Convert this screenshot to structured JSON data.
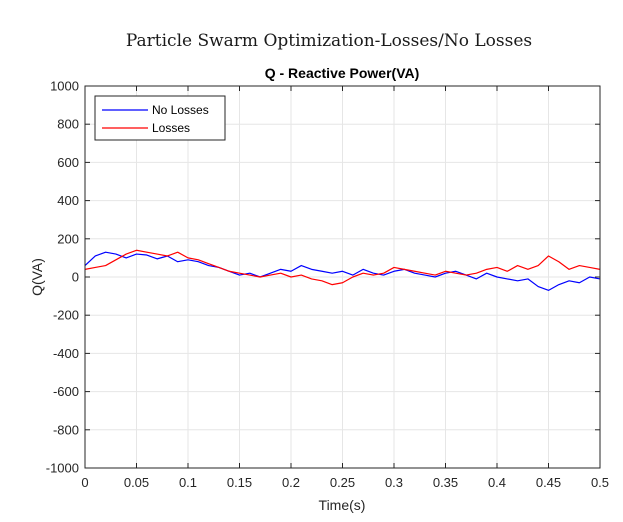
{
  "figure_title": "Particle Swarm Optimization-Losses/No Losses",
  "chart_data": {
    "type": "line",
    "title": "Q - Reactive Power(VA)",
    "xlabel": "Time(s)",
    "ylabel": "Q(VA)",
    "xlim": [
      0,
      0.5
    ],
    "ylim": [
      -1000,
      1000
    ],
    "xticks": [
      "0",
      "0.05",
      "0.1",
      "0.15",
      "0.2",
      "0.25",
      "0.3",
      "0.35",
      "0.4",
      "0.45",
      "0.5"
    ],
    "yticks": [
      "1000",
      "800",
      "600",
      "400",
      "200",
      "0",
      "-200",
      "-400",
      "-600",
      "-800",
      "-1000"
    ],
    "grid": true,
    "legend_position": "top-left",
    "x": [
      0,
      0.01,
      0.02,
      0.03,
      0.04,
      0.05,
      0.06,
      0.07,
      0.08,
      0.09,
      0.1,
      0.11,
      0.12,
      0.13,
      0.14,
      0.15,
      0.16,
      0.17,
      0.18,
      0.19,
      0.2,
      0.21,
      0.22,
      0.23,
      0.24,
      0.25,
      0.26,
      0.27,
      0.28,
      0.29,
      0.3,
      0.31,
      0.32,
      0.33,
      0.34,
      0.35,
      0.36,
      0.37,
      0.38,
      0.39,
      0.4,
      0.41,
      0.42,
      0.43,
      0.44,
      0.45,
      0.46,
      0.47,
      0.48,
      0.49,
      0.5
    ],
    "series": [
      {
        "name": "No Losses",
        "color": "#0000ff",
        "values": [
          60,
          110,
          130,
          120,
          100,
          120,
          115,
          95,
          110,
          80,
          90,
          80,
          60,
          50,
          30,
          10,
          20,
          0,
          20,
          40,
          30,
          60,
          40,
          30,
          20,
          30,
          10,
          40,
          20,
          10,
          30,
          40,
          20,
          10,
          0,
          20,
          30,
          10,
          -10,
          20,
          0,
          -10,
          -20,
          -10,
          -50,
          -70,
          -40,
          -20,
          -30,
          0,
          -10
        ]
      },
      {
        "name": "Losses",
        "color": "#ff0000",
        "values": [
          40,
          50,
          60,
          90,
          120,
          140,
          130,
          120,
          110,
          130,
          100,
          90,
          70,
          50,
          30,
          20,
          10,
          0,
          10,
          20,
          0,
          10,
          -10,
          -20,
          -40,
          -30,
          0,
          20,
          10,
          20,
          50,
          40,
          30,
          20,
          10,
          30,
          20,
          10,
          20,
          40,
          50,
          30,
          60,
          40,
          60,
          110,
          80,
          40,
          60,
          50,
          40
        ]
      }
    ]
  }
}
